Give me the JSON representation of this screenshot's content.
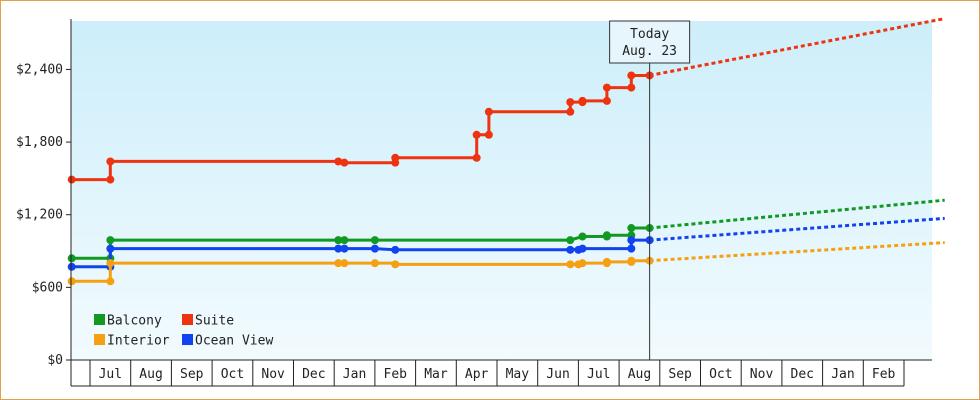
{
  "chart_data": {
    "type": "line",
    "title": "",
    "xlabel": "",
    "ylabel": "",
    "ylim": [
      0,
      2800
    ],
    "yticks": [
      0,
      600,
      1200,
      1800,
      2400
    ],
    "ytick_labels": [
      "$0",
      "$600",
      "$1,200",
      "$1,800",
      "$2,400"
    ],
    "x_months": [
      "Jul",
      "Aug",
      "Sep",
      "Oct",
      "Nov",
      "Dec",
      "Jan",
      "Feb",
      "Mar",
      "Apr",
      "May",
      "Jun",
      "Jul",
      "Aug",
      "Sep",
      "Oct",
      "Nov",
      "Dec",
      "Jan",
      "Feb"
    ],
    "x_range": [
      -0.45,
      21.0
    ],
    "grid": false,
    "legend_position": "bottom-left",
    "today_marker": {
      "line1": "Today",
      "line2": "Aug. 23",
      "x": 13.75
    },
    "series": [
      {
        "name": "Suite",
        "color": "#ee3311",
        "points": [
          [
            -0.45,
            1490
          ],
          [
            0.5,
            1490
          ],
          [
            0.5,
            1640
          ],
          [
            6.1,
            1640
          ],
          [
            6.25,
            1630
          ],
          [
            7.5,
            1630
          ],
          [
            7.5,
            1670
          ],
          [
            9.5,
            1670
          ],
          [
            9.5,
            1860
          ],
          [
            9.8,
            1860
          ],
          [
            9.8,
            2050
          ],
          [
            11.8,
            2050
          ],
          [
            11.8,
            2130
          ],
          [
            12.1,
            2130
          ],
          [
            12.1,
            2140
          ],
          [
            12.7,
            2140
          ],
          [
            12.7,
            2250
          ],
          [
            13.3,
            2250
          ],
          [
            13.3,
            2350
          ],
          [
            13.75,
            2350
          ]
        ],
        "markers": [
          [
            -0.45,
            1490
          ],
          [
            0.5,
            1490
          ],
          [
            0.5,
            1640
          ],
          [
            6.1,
            1640
          ],
          [
            6.25,
            1630
          ],
          [
            7.5,
            1630
          ],
          [
            7.5,
            1670
          ],
          [
            9.5,
            1670
          ],
          [
            9.5,
            1860
          ],
          [
            9.8,
            1860
          ],
          [
            9.8,
            2050
          ],
          [
            11.8,
            2050
          ],
          [
            11.8,
            2130
          ],
          [
            12.1,
            2130
          ],
          [
            12.1,
            2140
          ],
          [
            12.7,
            2140
          ],
          [
            12.7,
            2250
          ],
          [
            13.3,
            2250
          ],
          [
            13.3,
            2350
          ],
          [
            13.75,
            2350
          ]
        ],
        "forecast": [
          [
            13.75,
            2350
          ],
          [
            21.0,
            2820
          ]
        ]
      },
      {
        "name": "Balcony",
        "color": "#119922",
        "points": [
          [
            -0.45,
            840
          ],
          [
            0.5,
            840
          ],
          [
            0.5,
            990
          ],
          [
            7.0,
            990
          ],
          [
            11.8,
            990
          ],
          [
            12.1,
            1020
          ],
          [
            12.7,
            1020
          ],
          [
            12.7,
            1030
          ],
          [
            13.3,
            1030
          ],
          [
            13.3,
            1090
          ],
          [
            13.75,
            1090
          ]
        ],
        "markers": [
          [
            -0.45,
            840
          ],
          [
            0.5,
            840
          ],
          [
            0.5,
            990
          ],
          [
            6.1,
            990
          ],
          [
            6.25,
            990
          ],
          [
            7.0,
            990
          ],
          [
            11.8,
            990
          ],
          [
            12.1,
            1020
          ],
          [
            12.7,
            1020
          ],
          [
            12.7,
            1030
          ],
          [
            13.3,
            1030
          ],
          [
            13.3,
            1090
          ],
          [
            13.75,
            1090
          ]
        ],
        "forecast": [
          [
            13.75,
            1090
          ],
          [
            21.0,
            1320
          ]
        ]
      },
      {
        "name": "Ocean View",
        "color": "#1144ee",
        "points": [
          [
            -0.45,
            770
          ],
          [
            0.5,
            770
          ],
          [
            0.5,
            920
          ],
          [
            6.1,
            920
          ],
          [
            7.0,
            920
          ],
          [
            7.5,
            910
          ],
          [
            11.8,
            910
          ],
          [
            12.1,
            920
          ],
          [
            13.3,
            920
          ],
          [
            13.3,
            990
          ],
          [
            13.75,
            990
          ]
        ],
        "markers": [
          [
            -0.45,
            770
          ],
          [
            0.5,
            770
          ],
          [
            0.5,
            920
          ],
          [
            6.1,
            920
          ],
          [
            6.25,
            920
          ],
          [
            7.0,
            920
          ],
          [
            7.5,
            910
          ],
          [
            11.8,
            910
          ],
          [
            12.0,
            910
          ],
          [
            12.1,
            920
          ],
          [
            13.3,
            920
          ],
          [
            13.3,
            990
          ],
          [
            13.75,
            990
          ]
        ],
        "forecast": [
          [
            13.75,
            990
          ],
          [
            21.0,
            1170
          ]
        ]
      },
      {
        "name": "Interior",
        "color": "#f5a010",
        "points": [
          [
            -0.45,
            650
          ],
          [
            0.5,
            650
          ],
          [
            0.5,
            800
          ],
          [
            7.5,
            800
          ],
          [
            7.5,
            790
          ],
          [
            11.8,
            790
          ],
          [
            12.0,
            790
          ],
          [
            12.1,
            800
          ],
          [
            12.7,
            800
          ],
          [
            12.7,
            810
          ],
          [
            13.3,
            810
          ],
          [
            13.3,
            820
          ],
          [
            13.75,
            820
          ]
        ],
        "markers": [
          [
            -0.45,
            650
          ],
          [
            0.5,
            650
          ],
          [
            0.5,
            800
          ],
          [
            6.1,
            800
          ],
          [
            6.25,
            800
          ],
          [
            7.0,
            800
          ],
          [
            7.5,
            790
          ],
          [
            11.8,
            790
          ],
          [
            12.0,
            790
          ],
          [
            12.1,
            800
          ],
          [
            12.7,
            800
          ],
          [
            12.7,
            810
          ],
          [
            13.3,
            810
          ],
          [
            13.3,
            820
          ],
          [
            13.75,
            820
          ]
        ],
        "forecast": [
          [
            13.75,
            820
          ],
          [
            21.0,
            970
          ]
        ]
      }
    ],
    "legend": [
      {
        "name": "Balcony",
        "color": "#119922"
      },
      {
        "name": "Suite",
        "color": "#ee3311"
      },
      {
        "name": "Interior",
        "color": "#f5a010"
      },
      {
        "name": "Ocean View",
        "color": "#1144ee"
      }
    ]
  }
}
